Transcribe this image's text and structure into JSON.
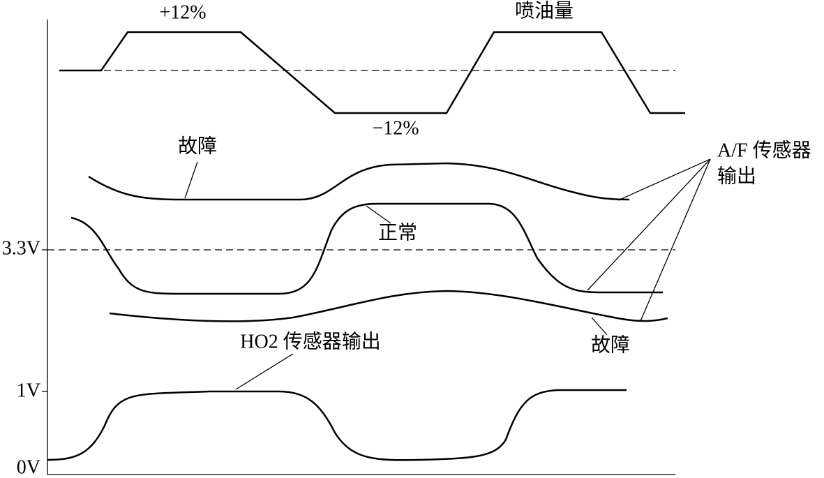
{
  "labels": {
    "injection_plus": "+12%",
    "injection_title": "喷油量",
    "injection_minus": "−12%",
    "fault_top": "故障",
    "normal": "正常",
    "fault_bottom": "故障",
    "af_output": [
      "A/F 传感器",
      "输出"
    ],
    "ho2_output": "HO2 传感器输出"
  },
  "axis_labels": [
    "3.3V",
    "1V",
    "0V"
  ]
}
